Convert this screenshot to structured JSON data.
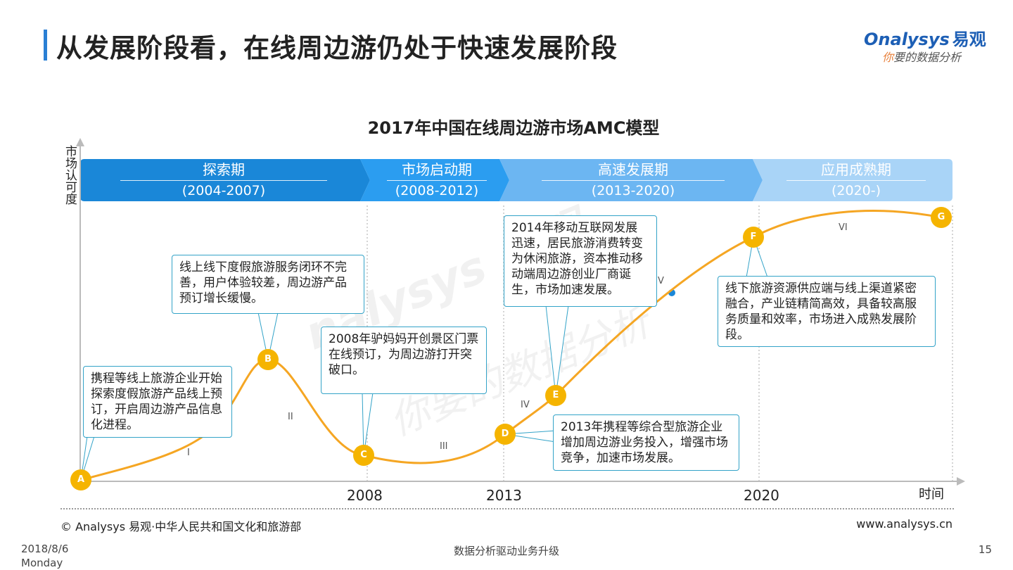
{
  "page": {
    "title": "从发展阶段看，在线周边游仍处于快速发展阶段",
    "logo_brand": "nalysys",
    "logo_brand_cn": "易观",
    "logo_slogan_first": "你",
    "logo_slogan_rest": "要的数据分析",
    "watermark_line1": "nalysys 易观",
    "watermark_line2": "你要的数据分析",
    "source": "© Analysys 易观·中华人民共和国文化和旅游部",
    "site": "www.analysys.cn",
    "date_line1": "2018/8/6",
    "date_line2": "Monday",
    "slogan": "数据分析驱动业务升级",
    "page_number": "15",
    "accent_color": "#2a7fd4",
    "curve_color": "#f5a623",
    "marker_color": "#f5b400"
  },
  "chart_data": {
    "type": "line",
    "title": "2017年中国在线周边游市场AMC模型",
    "ylabel": "市场认可度",
    "xlabel": "时间",
    "x_ticks": [
      "2008",
      "2013",
      "2020"
    ],
    "phases": [
      {
        "name": "探索期",
        "years": "(2004-2007)",
        "color": "#1a87d8"
      },
      {
        "name": "市场启动期",
        "years": "(2008-2012)",
        "color": "#2b9df0"
      },
      {
        "name": "高速发展期",
        "years": "(2013-2020)",
        "color": "#6cb6f2"
      },
      {
        "name": "应用成熟期",
        "years": "(2020-)",
        "color": "#a9d4f7"
      }
    ],
    "points": [
      {
        "label": "A"
      },
      {
        "label": "B"
      },
      {
        "label": "C"
      },
      {
        "label": "D"
      },
      {
        "label": "E"
      },
      {
        "label": "F"
      },
      {
        "label": "G"
      }
    ],
    "segments": [
      "I",
      "II",
      "III",
      "IV",
      "V",
      "VI"
    ],
    "annotations": [
      "携程等线上旅游企业开始探索度假旅游产品线上预订，开启周边游产品信息化进程。",
      "线上线下度假旅游服务闭环不完善，用户体验较差，周边游产品预订增长缓慢。",
      "2008年驴妈妈开创景区门票在线预订，为周边游打开突破口。",
      "2013年携程等综合型旅游企业增加周边游业务投入，增强市场竞争，加速市场发展。",
      "2014年移动互联网发展迅速，居民旅游消费转变为休闲旅游，资本推动移动端周边游创业厂商诞生，市场加速发展。",
      "线下旅游资源供应端与线上渠道紧密融合，产业链精简高效，具备较高服务质量和效率，市场进入成熟发展阶段。"
    ],
    "grid": false,
    "legend": "none"
  }
}
